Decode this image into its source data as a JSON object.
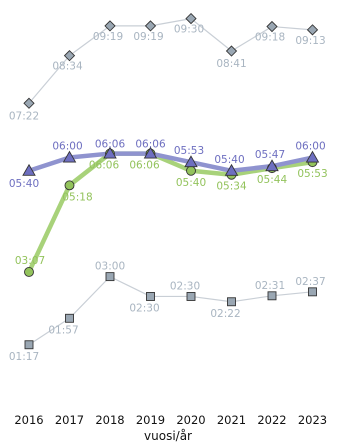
{
  "chart_data": {
    "type": "line",
    "x": [
      "2016",
      "2017",
      "2018",
      "2019",
      "2020",
      "2021",
      "2022",
      "2023"
    ],
    "xlabel": "vuosi/år",
    "ylabel": "",
    "title": "",
    "series": [
      {
        "key": "top",
        "marker": "diamond",
        "line_color": "#c9cfd6",
        "marker_fill": "#9aa7b3",
        "label_color": "#a9b5c1",
        "values": [
          442,
          514,
          559,
          559,
          570,
          521,
          558,
          553
        ],
        "labels": [
          "07:22",
          "08:34",
          "09:19",
          "09:19",
          "09:30",
          "08:41",
          "09:18",
          "09:13"
        ]
      },
      {
        "key": "blue",
        "marker": "triangle",
        "line_color": "#8f93cf",
        "marker_fill": "#6e6fc0",
        "label_color": "#6e6fc0",
        "values": [
          340,
          360,
          366,
          366,
          353,
          340,
          347,
          360
        ],
        "labels": [
          "05:40",
          "06:00",
          "06:06",
          "06:06",
          "05:53",
          "05:40",
          "05:47",
          "06:00"
        ]
      },
      {
        "key": "green",
        "marker": "circle",
        "line_color": "#a8d27a",
        "marker_fill": "#93c35c",
        "label_color": "#93c35c",
        "values": [
          187,
          318,
          366,
          366,
          340,
          334,
          344,
          353
        ],
        "labels": [
          "03:07",
          "05:18",
          "06:06",
          "06:06",
          "05:40",
          "05:34",
          "05:44",
          "05:53"
        ]
      },
      {
        "key": "bottom",
        "marker": "square",
        "line_color": "#c9cfd6",
        "marker_fill": "#9aa7b3",
        "label_color": "#a9b5c1",
        "values": [
          77,
          117,
          180,
          150,
          150,
          142,
          151,
          157
        ],
        "labels": [
          "01:17",
          "01:57",
          "03:00",
          "02:30",
          "02:30",
          "02:22",
          "02:31",
          "02:37"
        ]
      }
    ]
  }
}
